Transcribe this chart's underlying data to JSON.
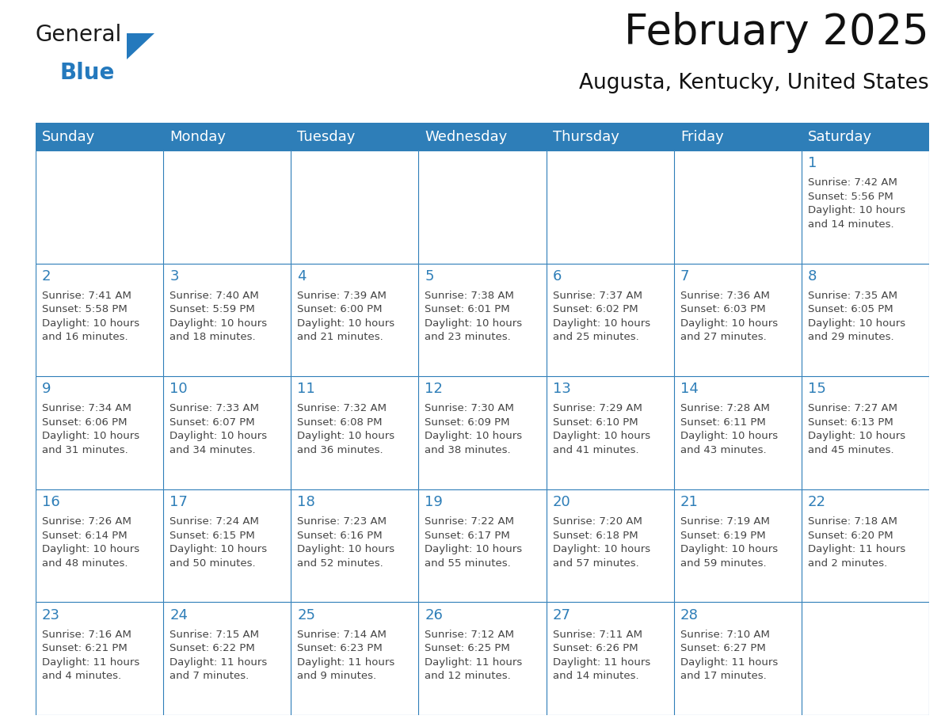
{
  "title": "February 2025",
  "subtitle": "Augusta, Kentucky, United States",
  "header_color": "#2E7EB8",
  "header_text_color": "#FFFFFF",
  "border_color": "#2E7EB8",
  "day_number_color": "#2E7EB8",
  "text_color": "#444444",
  "days_of_week": [
    "Sunday",
    "Monday",
    "Tuesday",
    "Wednesday",
    "Thursday",
    "Friday",
    "Saturday"
  ],
  "calendar_data": [
    [
      {
        "day": "",
        "info": ""
      },
      {
        "day": "",
        "info": ""
      },
      {
        "day": "",
        "info": ""
      },
      {
        "day": "",
        "info": ""
      },
      {
        "day": "",
        "info": ""
      },
      {
        "day": "",
        "info": ""
      },
      {
        "day": "1",
        "info": "Sunrise: 7:42 AM\nSunset: 5:56 PM\nDaylight: 10 hours\nand 14 minutes."
      }
    ],
    [
      {
        "day": "2",
        "info": "Sunrise: 7:41 AM\nSunset: 5:58 PM\nDaylight: 10 hours\nand 16 minutes."
      },
      {
        "day": "3",
        "info": "Sunrise: 7:40 AM\nSunset: 5:59 PM\nDaylight: 10 hours\nand 18 minutes."
      },
      {
        "day": "4",
        "info": "Sunrise: 7:39 AM\nSunset: 6:00 PM\nDaylight: 10 hours\nand 21 minutes."
      },
      {
        "day": "5",
        "info": "Sunrise: 7:38 AM\nSunset: 6:01 PM\nDaylight: 10 hours\nand 23 minutes."
      },
      {
        "day": "6",
        "info": "Sunrise: 7:37 AM\nSunset: 6:02 PM\nDaylight: 10 hours\nand 25 minutes."
      },
      {
        "day": "7",
        "info": "Sunrise: 7:36 AM\nSunset: 6:03 PM\nDaylight: 10 hours\nand 27 minutes."
      },
      {
        "day": "8",
        "info": "Sunrise: 7:35 AM\nSunset: 6:05 PM\nDaylight: 10 hours\nand 29 minutes."
      }
    ],
    [
      {
        "day": "9",
        "info": "Sunrise: 7:34 AM\nSunset: 6:06 PM\nDaylight: 10 hours\nand 31 minutes."
      },
      {
        "day": "10",
        "info": "Sunrise: 7:33 AM\nSunset: 6:07 PM\nDaylight: 10 hours\nand 34 minutes."
      },
      {
        "day": "11",
        "info": "Sunrise: 7:32 AM\nSunset: 6:08 PM\nDaylight: 10 hours\nand 36 minutes."
      },
      {
        "day": "12",
        "info": "Sunrise: 7:30 AM\nSunset: 6:09 PM\nDaylight: 10 hours\nand 38 minutes."
      },
      {
        "day": "13",
        "info": "Sunrise: 7:29 AM\nSunset: 6:10 PM\nDaylight: 10 hours\nand 41 minutes."
      },
      {
        "day": "14",
        "info": "Sunrise: 7:28 AM\nSunset: 6:11 PM\nDaylight: 10 hours\nand 43 minutes."
      },
      {
        "day": "15",
        "info": "Sunrise: 7:27 AM\nSunset: 6:13 PM\nDaylight: 10 hours\nand 45 minutes."
      }
    ],
    [
      {
        "day": "16",
        "info": "Sunrise: 7:26 AM\nSunset: 6:14 PM\nDaylight: 10 hours\nand 48 minutes."
      },
      {
        "day": "17",
        "info": "Sunrise: 7:24 AM\nSunset: 6:15 PM\nDaylight: 10 hours\nand 50 minutes."
      },
      {
        "day": "18",
        "info": "Sunrise: 7:23 AM\nSunset: 6:16 PM\nDaylight: 10 hours\nand 52 minutes."
      },
      {
        "day": "19",
        "info": "Sunrise: 7:22 AM\nSunset: 6:17 PM\nDaylight: 10 hours\nand 55 minutes."
      },
      {
        "day": "20",
        "info": "Sunrise: 7:20 AM\nSunset: 6:18 PM\nDaylight: 10 hours\nand 57 minutes."
      },
      {
        "day": "21",
        "info": "Sunrise: 7:19 AM\nSunset: 6:19 PM\nDaylight: 10 hours\nand 59 minutes."
      },
      {
        "day": "22",
        "info": "Sunrise: 7:18 AM\nSunset: 6:20 PM\nDaylight: 11 hours\nand 2 minutes."
      }
    ],
    [
      {
        "day": "23",
        "info": "Sunrise: 7:16 AM\nSunset: 6:21 PM\nDaylight: 11 hours\nand 4 minutes."
      },
      {
        "day": "24",
        "info": "Sunrise: 7:15 AM\nSunset: 6:22 PM\nDaylight: 11 hours\nand 7 minutes."
      },
      {
        "day": "25",
        "info": "Sunrise: 7:14 AM\nSunset: 6:23 PM\nDaylight: 11 hours\nand 9 minutes."
      },
      {
        "day": "26",
        "info": "Sunrise: 7:12 AM\nSunset: 6:25 PM\nDaylight: 11 hours\nand 12 minutes."
      },
      {
        "day": "27",
        "info": "Sunrise: 7:11 AM\nSunset: 6:26 PM\nDaylight: 11 hours\nand 14 minutes."
      },
      {
        "day": "28",
        "info": "Sunrise: 7:10 AM\nSunset: 6:27 PM\nDaylight: 11 hours\nand 17 minutes."
      },
      {
        "day": "",
        "info": ""
      }
    ]
  ],
  "logo_general_color": "#1a1a1a",
  "logo_blue_color": "#2479BD",
  "title_fontsize": 38,
  "subtitle_fontsize": 19,
  "header_fontsize": 13,
  "day_num_fontsize": 13,
  "info_fontsize": 9.5,
  "fig_width": 11.88,
  "fig_height": 9.18,
  "dpi": 100
}
